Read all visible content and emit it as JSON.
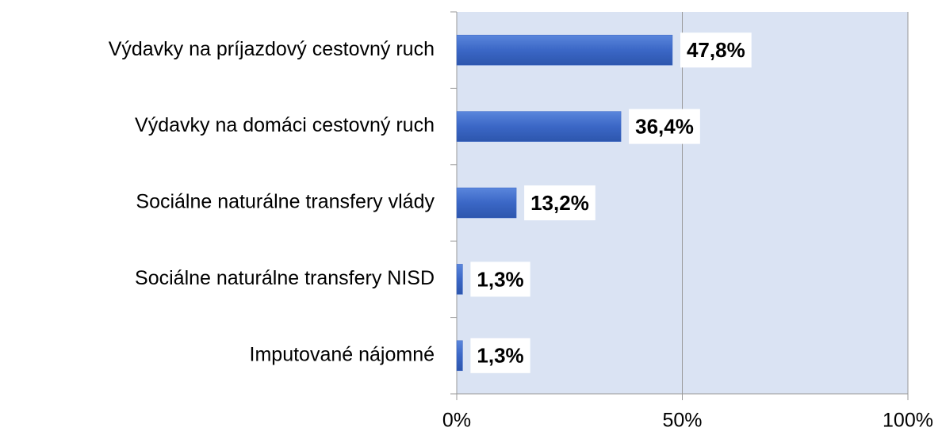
{
  "chart_data": {
    "type": "barh",
    "categories": [
      "Výdavky na príjazdový cestovný ruch",
      "Výdavky na domáci cestovný ruch",
      "Sociálne naturálne transfery vlády",
      "Sociálne naturálne transfery NISD",
      "Imputované nájomné"
    ],
    "values": [
      47.8,
      36.4,
      13.2,
      1.3,
      1.3
    ],
    "value_labels": [
      "47,8%",
      "36,4%",
      "13,2%",
      "1,3%",
      "1,3%"
    ],
    "color": "#3b67c6",
    "xlim": [
      0,
      100
    ],
    "xticks": [
      {
        "value": 0,
        "label": "0%"
      },
      {
        "value": 50,
        "label": "50%"
      },
      {
        "value": 100,
        "label": "100%"
      }
    ],
    "grid": true
  }
}
